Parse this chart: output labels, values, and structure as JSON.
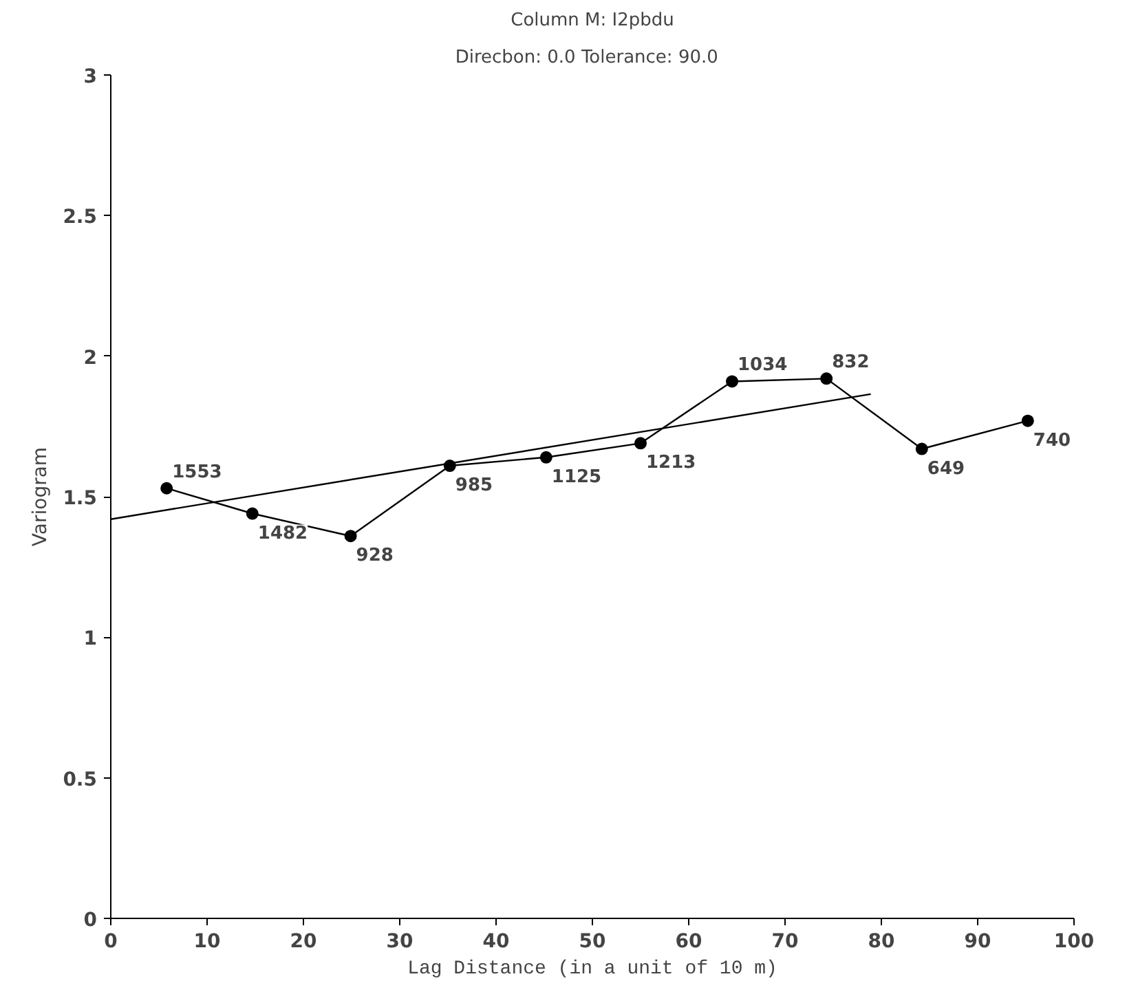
{
  "chart_data": {
    "type": "line",
    "title": "Column M: I2pbdu",
    "subtitle": "Direcbon: 0.0   Tolerance: 90.0",
    "xlabel": "Lag Distance (in a unit of 10 m)",
    "ylabel": "Variogram",
    "xlim": [
      0,
      100
    ],
    "ylim": [
      0,
      3
    ],
    "xticks": [
      0,
      10,
      20,
      30,
      40,
      50,
      60,
      70,
      80,
      90,
      100
    ],
    "yticks": [
      0,
      {
        "value": 0.5,
        "label": "0.5"
      },
      1,
      {
        "value": 1.5,
        "label": "1.5"
      },
      2,
      {
        "value": 2.5,
        "label": "2.5"
      },
      3
    ],
    "grid": false,
    "marker": "circle",
    "series": [
      {
        "color": "#000000",
        "x": [
          5.8,
          14.7,
          24.9,
          35.2,
          45.2,
          55.0,
          64.5,
          74.3,
          84.2,
          95.2
        ],
        "values": [
          1.53,
          1.44,
          1.36,
          1.61,
          1.64,
          1.69,
          1.91,
          1.92,
          1.67,
          1.77
        ]
      },
      {
        "type": "line",
        "marker": "none",
        "color": "#000000",
        "x": [
          0,
          78.9
        ],
        "values": [
          1.42,
          1.865
        ]
      }
    ],
    "annotations": [
      {
        "text": "1553",
        "x": 5.8,
        "y": 1.53
      },
      {
        "text": "1482",
        "x": 14.7,
        "y": 1.44
      },
      {
        "text": "928",
        "x": 24.9,
        "y": 1.36
      },
      {
        "text": "985",
        "x": 35.2,
        "y": 1.61
      },
      {
        "text": "1125",
        "x": 45.2,
        "y": 1.64
      },
      {
        "text": "1213",
        "x": 55.0,
        "y": 1.69
      },
      {
        "text": "1034",
        "x": 64.5,
        "y": 1.91
      },
      {
        "text": "832",
        "x": 74.3,
        "y": 1.92
      },
      {
        "text": "649",
        "x": 84.2,
        "y": 1.67
      },
      {
        "text": "740",
        "x": 95.2,
        "y": 1.77
      }
    ]
  }
}
